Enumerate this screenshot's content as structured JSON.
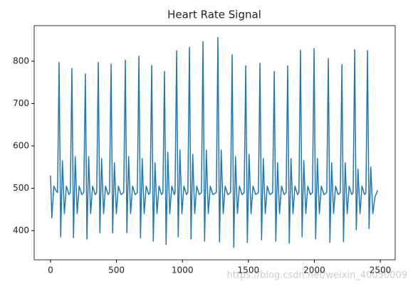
{
  "chart_data": {
    "type": "line",
    "title": "Heart Rate Signal",
    "color": "#1f77b4",
    "watermark": "https://blog.csdn.net/weixin_40050009",
    "x": [
      0,
      10,
      25,
      40,
      53,
      65,
      77,
      90,
      105,
      120,
      140,
      150,
      162,
      174,
      187,
      202,
      217,
      237,
      252,
      264,
      276,
      289,
      304,
      319,
      339,
      350,
      362,
      374,
      387,
      402,
      417,
      437,
      447,
      459,
      471,
      484,
      499,
      514,
      534,
      555,
      567,
      579,
      592,
      607,
      622,
      642,
      658,
      670,
      682,
      695,
      710,
      725,
      745,
      755,
      767,
      779,
      792,
      807,
      822,
      842,
      852,
      864,
      876,
      889,
      904,
      919,
      939,
      944,
      956,
      968,
      981,
      996,
      1011,
      1031,
      1041,
      1053,
      1065,
      1078,
      1093,
      1108,
      1128,
      1144,
      1156,
      1168,
      1181,
      1196,
      1211,
      1231,
      1257,
      1269,
      1281,
      1294,
      1309,
      1324,
      1344,
      1365,
      1377,
      1389,
      1402,
      1417,
      1432,
      1452,
      1468,
      1480,
      1492,
      1505,
      1520,
      1535,
      1555,
      1576,
      1588,
      1600,
      1613,
      1628,
      1643,
      1663,
      1684,
      1696,
      1708,
      1721,
      1736,
      1751,
      1771,
      1786,
      1798,
      1810,
      1823,
      1838,
      1853,
      1873,
      1883,
      1895,
      1907,
      1920,
      1935,
      1950,
      1970,
      1986,
      1998,
      2010,
      2023,
      2038,
      2053,
      2073,
      2094,
      2106,
      2118,
      2131,
      2146,
      2161,
      2181,
      2197,
      2209,
      2221,
      2234,
      2249,
      2264,
      2284,
      2294,
      2306,
      2318,
      2331,
      2346,
      2361,
      2381,
      2391,
      2403,
      2415,
      2428,
      2443,
      2460,
      2480
    ],
    "values": [
      530,
      430,
      505,
      495,
      490,
      797,
      385,
      565,
      440,
      505,
      485,
      490,
      783,
      383,
      575,
      440,
      505,
      485,
      490,
      770,
      380,
      575,
      440,
      505,
      485,
      490,
      797,
      395,
      570,
      440,
      505,
      485,
      490,
      793,
      395,
      560,
      440,
      505,
      485,
      490,
      803,
      395,
      575,
      440,
      505,
      485,
      490,
      812,
      383,
      570,
      440,
      505,
      485,
      490,
      790,
      375,
      560,
      440,
      505,
      485,
      490,
      776,
      367,
      585,
      440,
      505,
      485,
      490,
      825,
      385,
      590,
      440,
      505,
      485,
      490,
      833,
      380,
      580,
      440,
      505,
      485,
      490,
      846,
      375,
      590,
      440,
      505,
      485,
      490,
      856,
      373,
      590,
      440,
      505,
      485,
      490,
      815,
      360,
      575,
      440,
      505,
      485,
      490,
      789,
      372,
      580,
      440,
      505,
      485,
      490,
      795,
      378,
      570,
      440,
      505,
      485,
      490,
      776,
      375,
      560,
      440,
      505,
      485,
      490,
      789,
      370,
      570,
      440,
      505,
      485,
      490,
      826,
      385,
      565,
      440,
      505,
      485,
      490,
      830,
      380,
      570,
      440,
      505,
      485,
      490,
      806,
      372,
      560,
      440,
      505,
      485,
      490,
      792,
      374,
      560,
      440,
      505,
      485,
      490,
      827,
      402,
      545,
      440,
      505,
      485,
      490,
      825,
      405,
      550,
      440,
      480,
      495
    ],
    "xlim": [
      -124,
      2613
    ],
    "xticks": [
      0,
      500,
      1000,
      1500,
      2000,
      2500
    ],
    "ylim": [
      331,
      884
    ],
    "yticks": [
      400,
      500,
      600,
      700,
      800
    ]
  }
}
